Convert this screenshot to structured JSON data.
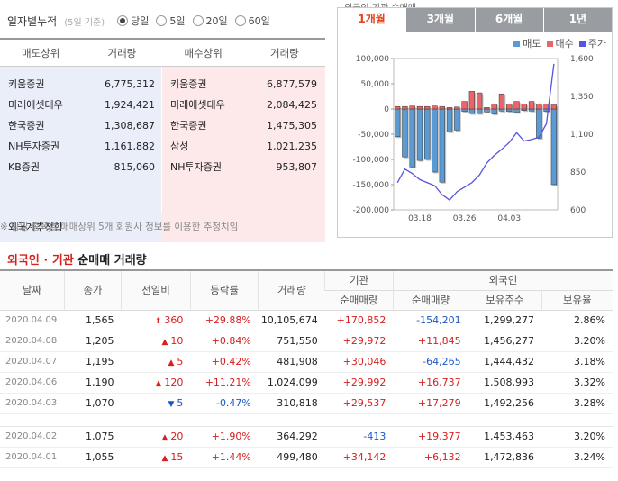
{
  "ranking": {
    "period_label": "일자별누적",
    "period_note": "(5일 기준)",
    "periods": [
      {
        "label": "당일",
        "selected": true
      },
      {
        "label": "5일",
        "selected": false
      },
      {
        "label": "20일",
        "selected": false
      },
      {
        "label": "60일",
        "selected": false
      }
    ],
    "headers": [
      "매도상위",
      "거래량",
      "매수상위",
      "거래량"
    ],
    "sell": [
      {
        "name": "키움증권",
        "vol": "6,775,312"
      },
      {
        "name": "미래에셋대우",
        "vol": "1,924,421"
      },
      {
        "name": "한국증권",
        "vol": "1,308,687"
      },
      {
        "name": "NH투자증권",
        "vol": "1,161,882"
      },
      {
        "name": "KB증권",
        "vol": "815,060"
      }
    ],
    "buy": [
      {
        "name": "키움증권",
        "vol": "6,877,579"
      },
      {
        "name": "미래에셋대우",
        "vol": "2,084,425"
      },
      {
        "name": "한국증권",
        "vol": "1,475,305"
      },
      {
        "name": "삼성",
        "vol": "1,021,235"
      },
      {
        "name": "NH투자증권",
        "vol": "953,807"
      }
    ],
    "foreign_estimate": "외국계추정합",
    "note": "※ 당일 종목별 매매상위 5개 회원사 정보를 이용한 추정치임"
  },
  "chart_panel": {
    "top_text": "외국인·기관 순매매",
    "tabs": [
      {
        "label": "1개월",
        "active": true
      },
      {
        "label": "3개월",
        "active": false
      },
      {
        "label": "6개월",
        "active": false
      },
      {
        "label": "1년",
        "active": false
      }
    ],
    "legend": [
      {
        "label": "매도",
        "color": "#5b9bd5"
      },
      {
        "label": "매수",
        "color": "#e8666b"
      },
      {
        "label": "주가",
        "color": "#5555dd"
      }
    ]
  },
  "chart_data": {
    "type": "bar",
    "left_axis": {
      "ticks": [
        "100,000",
        "50,000",
        "0",
        "-50,000",
        "-100,000",
        "-150,000",
        "-200,000"
      ],
      "range": [
        -200000,
        100000
      ]
    },
    "right_axis": {
      "ticks": [
        "1,600",
        "1,350",
        "1,100",
        "850",
        "600"
      ],
      "range": [
        600,
        1600
      ]
    },
    "x_ticks": [
      {
        "label": "03.18",
        "index": 3
      },
      {
        "label": "03.26",
        "index": 9
      },
      {
        "label": "04.03",
        "index": 15
      }
    ],
    "series": [
      {
        "name": "매도",
        "color": "#5b9bd5",
        "values": [
          -55000,
          -95000,
          -115000,
          -102000,
          -100000,
          -125000,
          -145000,
          -45000,
          -42000,
          -5000,
          -9000,
          -9000,
          -6000,
          -10000,
          -4000,
          -5000,
          -7000,
          -3000,
          -4000,
          -58000,
          -5000,
          -150000
        ]
      },
      {
        "name": "매수",
        "color": "#e8666b",
        "values": [
          5000,
          5000,
          6000,
          5000,
          5000,
          6000,
          5000,
          3000,
          4000,
          15000,
          35000,
          32000,
          3000,
          10000,
          30000,
          10000,
          15000,
          10000,
          15000,
          10000,
          10000,
          8000
        ]
      },
      {
        "name": "주가",
        "color": "#5555dd",
        "values": [
          780,
          870,
          840,
          800,
          780,
          760,
          700,
          665,
          720,
          750,
          780,
          830,
          910,
          960,
          1000,
          1045,
          1110,
          1055,
          1065,
          1080,
          1170,
          1565
        ]
      }
    ]
  },
  "investor": {
    "title_red": "외국인 · 기관",
    "title_rest": "순매매 거래량",
    "group_headers": {
      "inst": "기관",
      "foreign": "외국인"
    },
    "headers": {
      "date": "날짜",
      "close": "종가",
      "change": "전일비",
      "rate": "등락률",
      "volume": "거래량",
      "inst_net": "순매매량",
      "foreign_net": "순매매량",
      "foreign_hold": "보유주수",
      "foreign_ratio": "보유율"
    },
    "rows": [
      {
        "date": "2020.04.09",
        "close": "1,565",
        "dir": "upper",
        "change": "360",
        "rate": "+29.88%",
        "volume": "10,105,674",
        "inst": "+170,852",
        "foreign": "-154,201",
        "hold": "1,299,277",
        "ratio": "2.86%"
      },
      {
        "date": "2020.04.08",
        "close": "1,205",
        "dir": "up",
        "change": "10",
        "rate": "+0.84%",
        "volume": "751,550",
        "inst": "+29,972",
        "foreign": "+11,845",
        "hold": "1,456,277",
        "ratio": "3.20%"
      },
      {
        "date": "2020.04.07",
        "close": "1,195",
        "dir": "up",
        "change": "5",
        "rate": "+0.42%",
        "volume": "481,908",
        "inst": "+30,046",
        "foreign": "-64,265",
        "hold": "1,444,432",
        "ratio": "3.18%"
      },
      {
        "date": "2020.04.06",
        "close": "1,190",
        "dir": "up",
        "change": "120",
        "rate": "+11.21%",
        "volume": "1,024,099",
        "inst": "+29,992",
        "foreign": "+16,737",
        "hold": "1,508,993",
        "ratio": "3.32%"
      },
      {
        "date": "2020.04.03",
        "close": "1,070",
        "dir": "down",
        "change": "5",
        "rate": "-0.47%",
        "volume": "310,818",
        "inst": "+29,537",
        "foreign": "+17,279",
        "hold": "1,492,256",
        "ratio": "3.28%"
      },
      {
        "gap": true
      },
      {
        "date": "2020.04.02",
        "close": "1,075",
        "dir": "up",
        "change": "20",
        "rate": "+1.90%",
        "volume": "364,292",
        "inst": "-413",
        "foreign": "+19,377",
        "hold": "1,453,463",
        "ratio": "3.20%"
      },
      {
        "date": "2020.04.01",
        "close": "1,055",
        "dir": "up",
        "change": "15",
        "rate": "+1.44%",
        "volume": "499,480",
        "inst": "+34,142",
        "foreign": "+6,132",
        "hold": "1,472,836",
        "ratio": "3.24%"
      }
    ]
  }
}
